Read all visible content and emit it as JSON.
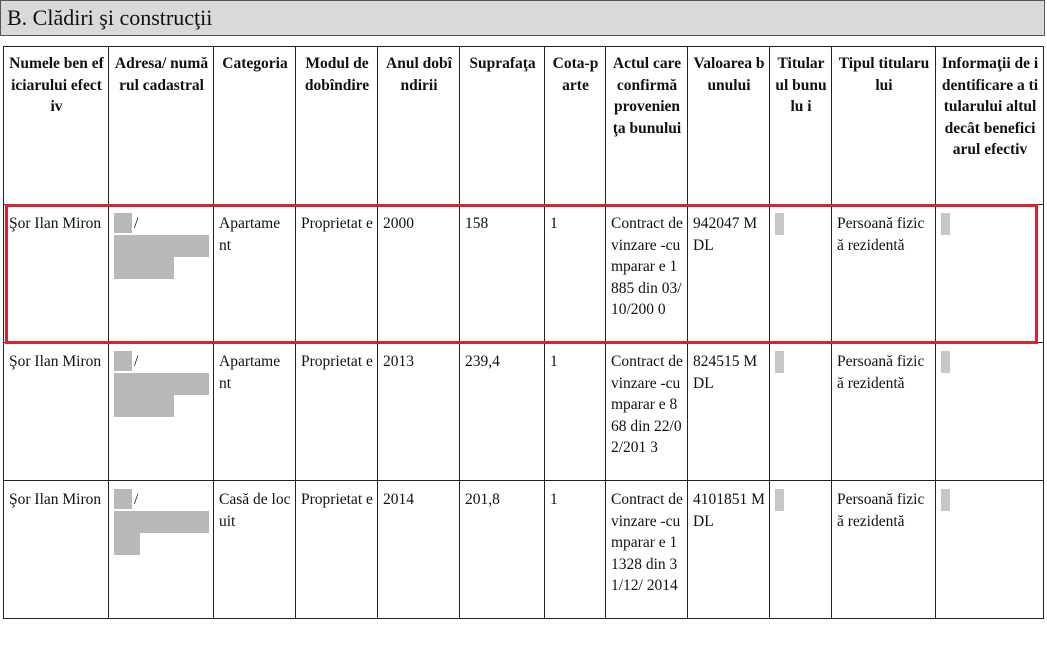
{
  "section": {
    "title": "B. Clădiri şi construcţii"
  },
  "columns": [
    "Numele ben eficiarului efectiv",
    "Adresa/ numărul cadastral",
    "Categoria",
    "Modul de dobîndire",
    "Anul dobîndirii",
    "Suprafaţa",
    "Cota-parte",
    "Actul care confirmă provenien ţa bunului",
    "Valoarea bunului",
    "Titular ul bunulu i",
    "Tipul titularului",
    "Informaţii de identificare a titularului altul decât beneficiarul efectiv"
  ],
  "rows": [
    {
      "name": "Şor Ilan Miron",
      "address_sep": "/",
      "category": "Apartame nt",
      "acquisition_mode": "Proprietat e",
      "year": "2000",
      "area": "158",
      "share": "1",
      "document": "Contract de vinzare -cumparar e 1885 din 03/10/200 0",
      "value": "942047 MDL",
      "holder_type": "Persoană fizică rezidentă",
      "highlighted": true
    },
    {
      "name": "Şor Ilan Miron",
      "address_sep": "/",
      "category": "Apartame nt",
      "acquisition_mode": "Proprietat e",
      "year": "2013",
      "area": "239,4",
      "share": "1",
      "document": "Contract de vinzare -cumparar e 868 din 22/02/201 3",
      "value": "824515 MDL",
      "holder_type": "Persoană fizică rezidentă",
      "highlighted": false
    },
    {
      "name": "Şor Ilan Miron",
      "address_sep": "/",
      "category": "Casă de locuit",
      "acquisition_mode": "Proprietat e",
      "year": "2014",
      "area": "201,8",
      "share": "1",
      "document": "Contract de vinzare -cumparar e 11328 din 31/12/ 2014",
      "value": "4101851 MDL",
      "holder_type": "Persoană fizică rezidentă",
      "highlighted": false
    }
  ],
  "colors": {
    "highlight": "#d9232e",
    "header_bg": "#d9d9d9",
    "redaction": "#b8b8b8"
  }
}
